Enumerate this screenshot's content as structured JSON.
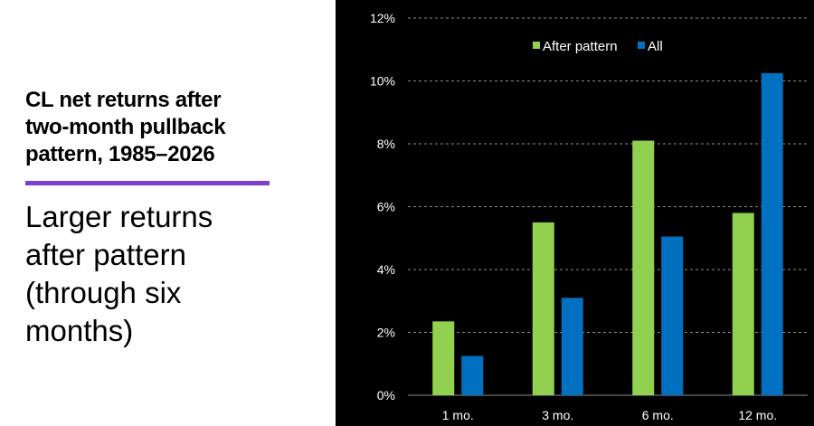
{
  "left_panel": {
    "title": "CL net returns after\ntwo-month pullback\npattern, 1985–2026",
    "subtitle": "Larger returns\nafter pattern\n(through  six\nmonths)",
    "accent_color": "#7b3fd1"
  },
  "colors": {
    "chart_background": "#000000",
    "text": "#ffffff",
    "gridline": "#8c8c8c"
  },
  "chart_data": {
    "type": "bar",
    "title": "",
    "xlabel": "",
    "ylabel": "",
    "categories": [
      "1 mo.",
      "3 mo.",
      "6 mo.",
      "12 mo."
    ],
    "series": [
      {
        "name": "After pattern",
        "color": "#92d050",
        "values": [
          2.35,
          5.5,
          8.1,
          5.8
        ]
      },
      {
        "name": "All",
        "color": "#0070c0",
        "values": [
          1.25,
          3.1,
          5.05,
          10.25
        ]
      }
    ],
    "ylim": [
      0,
      12
    ],
    "yticks": [
      0,
      2,
      4,
      6,
      8,
      10,
      12
    ],
    "ytick_labels": [
      "0%",
      "2%",
      "4%",
      "6%",
      "8%",
      "10%",
      "12%"
    ],
    "grid": "horizontal dashed",
    "legend_position": "top-center"
  }
}
